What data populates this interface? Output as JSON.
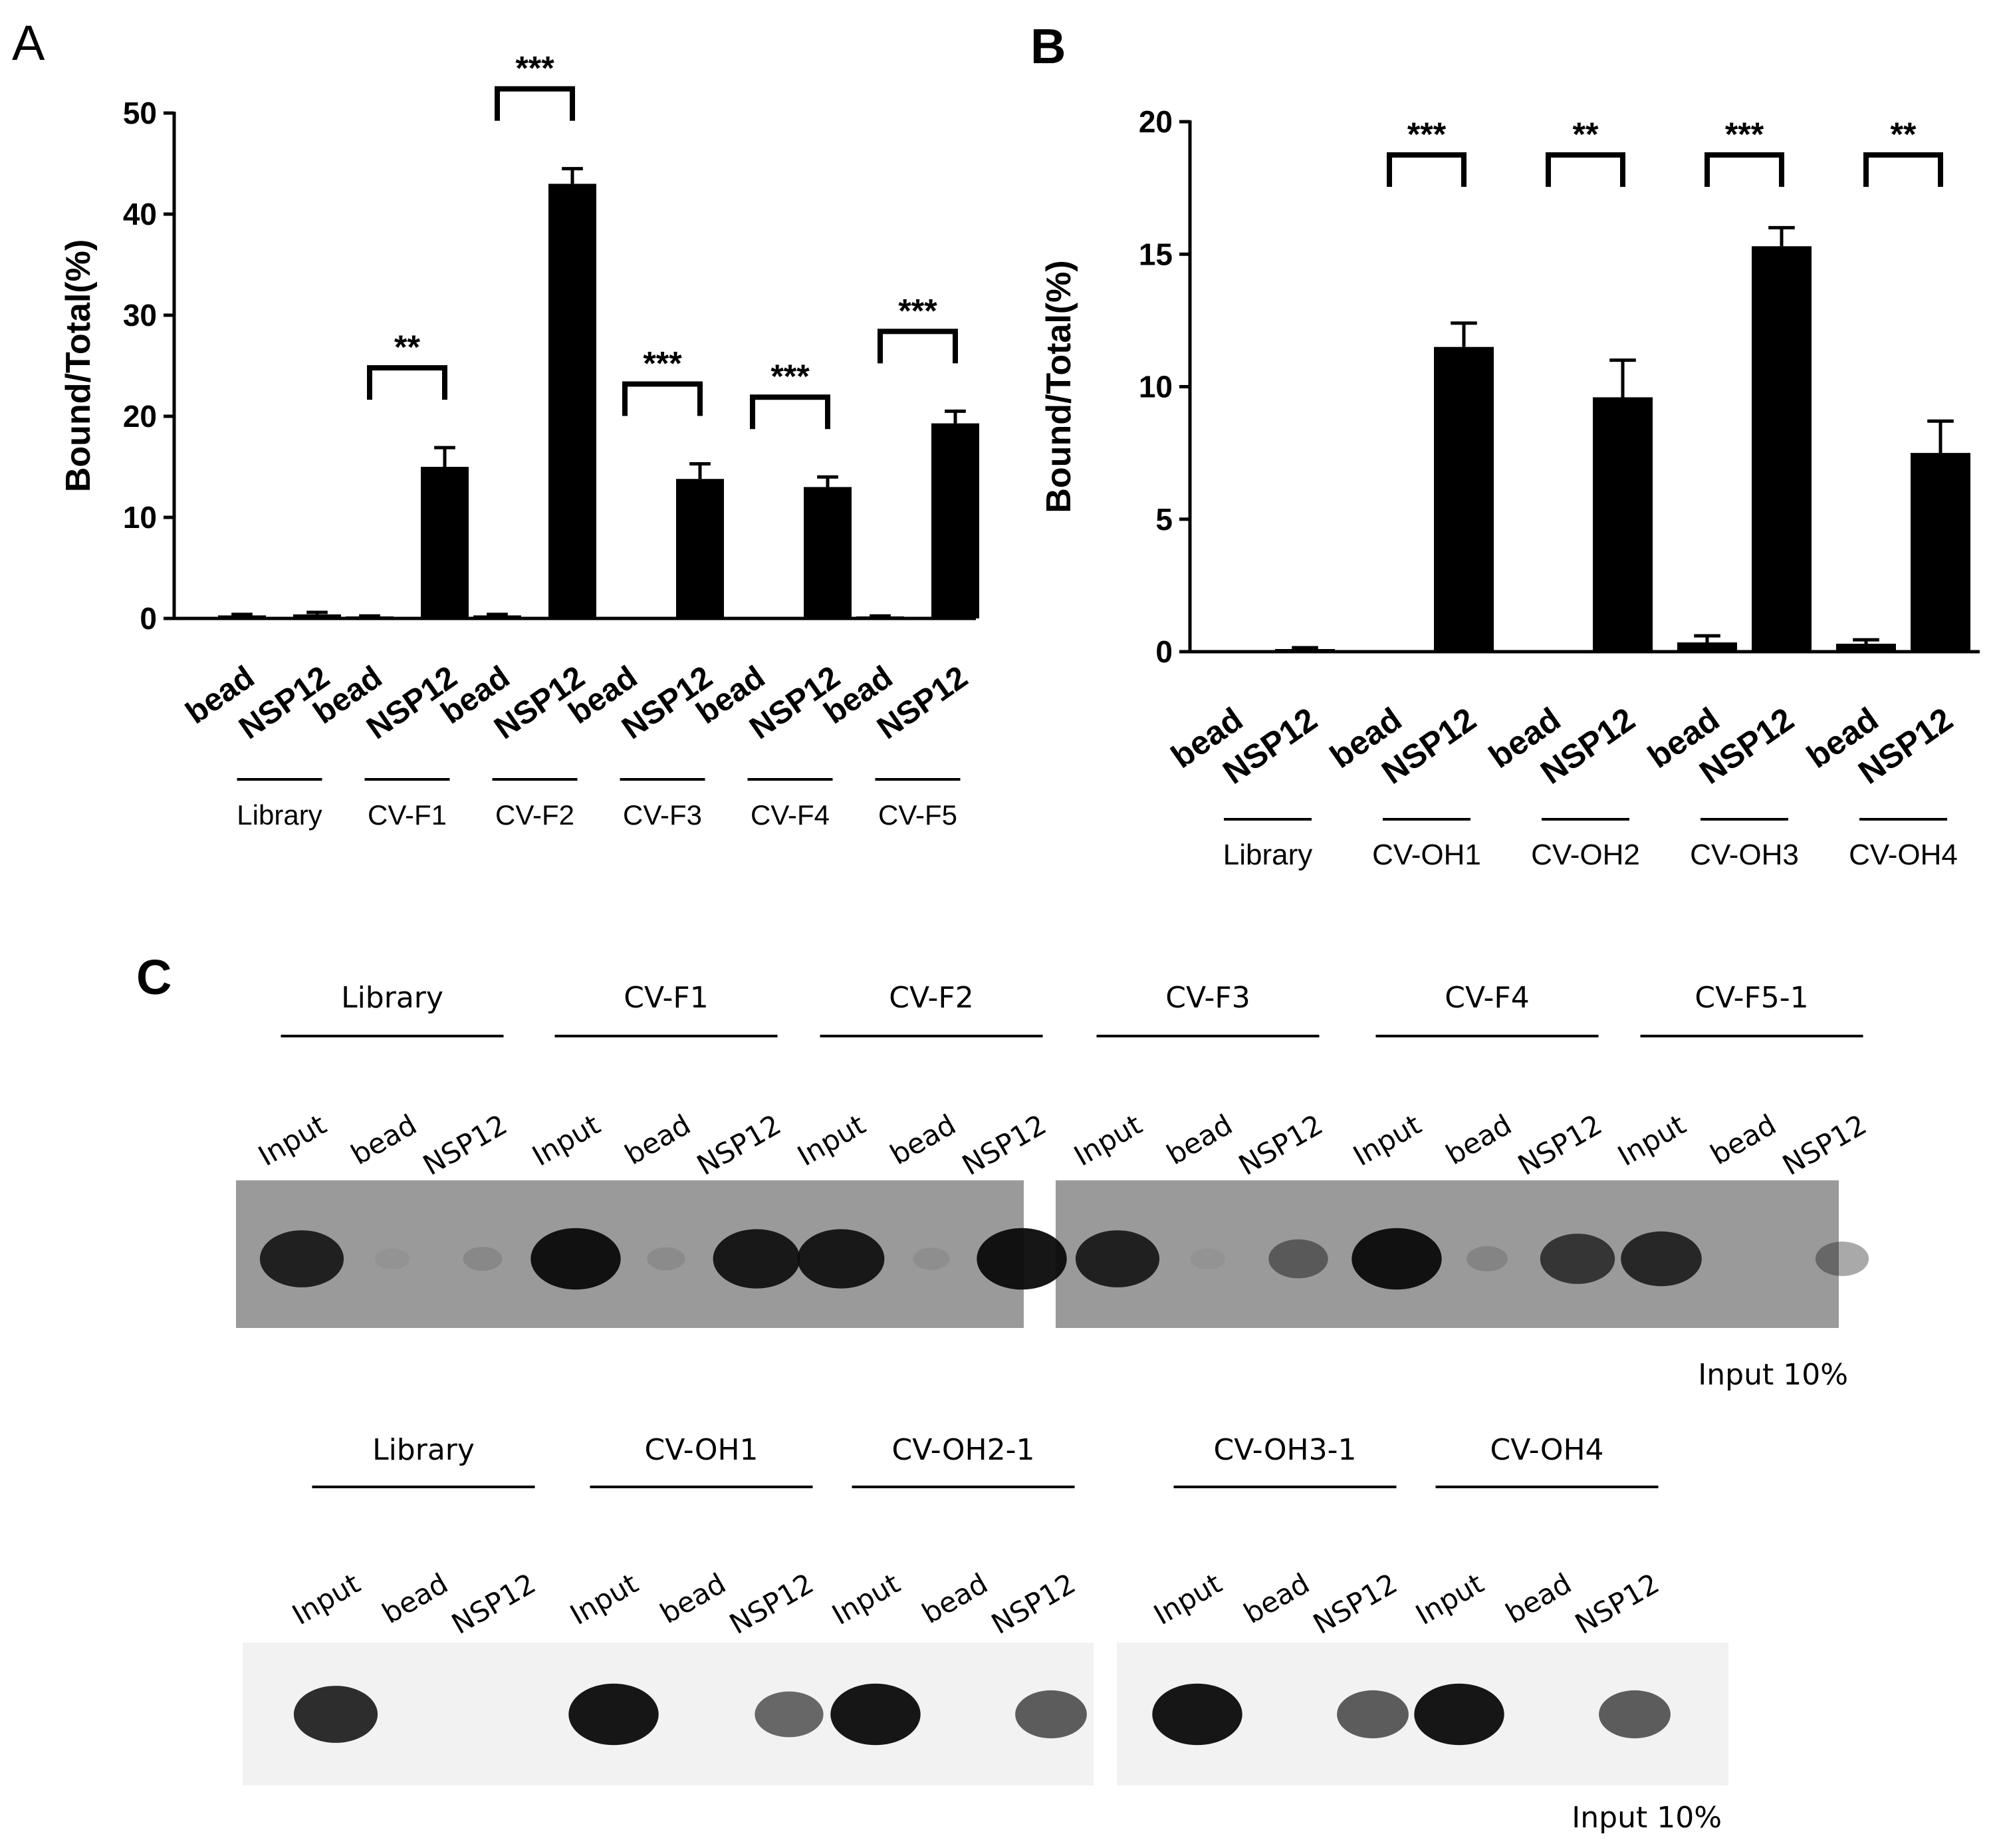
{
  "chart_data": [
    {
      "panel": "A",
      "type": "bar",
      "ylabel": "Bound/Total(%)",
      "ylim": [
        0,
        50
      ],
      "yticks": [
        0,
        10,
        20,
        30,
        40,
        50
      ],
      "groups": [
        "Library",
        "CV-F1",
        "CV-F2",
        "CV-F3",
        "CV-F4",
        "CV-F5"
      ],
      "categories": [
        "bead",
        "NSP12",
        "bead",
        "NSP12",
        "bead",
        "NSP12",
        "bead",
        "NSP12",
        "bead",
        "NSP12",
        "bead",
        "NSP12"
      ],
      "values": [
        0.3,
        0.4,
        0.2,
        15.0,
        0.3,
        43.0,
        0.0,
        13.8,
        0.0,
        13.0,
        0.2,
        19.3
      ],
      "errors": [
        0.1,
        0.2,
        0.05,
        1.9,
        0.1,
        1.5,
        0,
        1.5,
        0,
        1.0,
        0.05,
        1.2
      ],
      "significance": [
        {
          "group": 1,
          "label": "**"
        },
        {
          "group": 2,
          "label": "***"
        },
        {
          "group": 3,
          "label": "***"
        },
        {
          "group": 4,
          "label": "***"
        },
        {
          "group": 5,
          "label": "***"
        }
      ]
    },
    {
      "panel": "B",
      "type": "bar",
      "ylabel": "Bound/Total(%)",
      "ylim": [
        0,
        20
      ],
      "yticks": [
        0,
        5,
        10,
        15,
        20
      ],
      "groups": [
        "Library",
        "CV-OH1",
        "CV-OH2",
        "CV-OH3",
        "CV-OH4"
      ],
      "categories": [
        "bead",
        "NSP12",
        "bead",
        "NSP12",
        "bead",
        "NSP12",
        "bead",
        "NSP12",
        "bead",
        "NSP12"
      ],
      "values": [
        0.0,
        0.1,
        0.0,
        11.5,
        0.0,
        9.6,
        0.35,
        15.3,
        0.3,
        7.5
      ],
      "errors": [
        0,
        0.05,
        0,
        0.9,
        0,
        1.4,
        0.25,
        0.7,
        0.15,
        1.2
      ],
      "significance": [
        {
          "group": 1,
          "label": "***"
        },
        {
          "group": 2,
          "label": "**"
        },
        {
          "group": 3,
          "label": "***"
        },
        {
          "group": 4,
          "label": "**"
        }
      ]
    }
  ],
  "panel_c": {
    "letter": "C",
    "lane_labels": [
      "Input",
      "bead",
      "NSP12"
    ],
    "blots": [
      {
        "groups": [
          "Library",
          "CV-F1",
          "CV-F2",
          "CV-F3",
          "CV-F4",
          "CV-F5-1"
        ],
        "note": "Input 10%",
        "band_intensity": [
          [
            0.85,
            0.05,
            0.12
          ],
          [
            0.95,
            0.1,
            0.9
          ],
          [
            0.9,
            0.08,
            0.95
          ],
          [
            0.85,
            0.05,
            0.45
          ],
          [
            0.95,
            0.15,
            0.7
          ],
          [
            0.8,
            0.0,
            0.35
          ]
        ],
        "background": "#9a9a9a"
      },
      {
        "groups": [
          "Library",
          "CV-OH1",
          "CV-OH2-1",
          "CV-OH3-1",
          "CV-OH4"
        ],
        "note": "Input 10%",
        "band_intensity": [
          [
            0.85,
            0.0,
            0.0
          ],
          [
            0.95,
            0.0,
            0.6
          ],
          [
            0.95,
            0.0,
            0.65
          ],
          [
            0.95,
            0.0,
            0.65
          ],
          [
            0.95,
            0.0,
            0.65
          ]
        ],
        "background": "#f2f2f2"
      }
    ]
  },
  "colors": {
    "bar": "#000000",
    "blot_band": "#0a0a0a",
    "text": "#000000"
  }
}
